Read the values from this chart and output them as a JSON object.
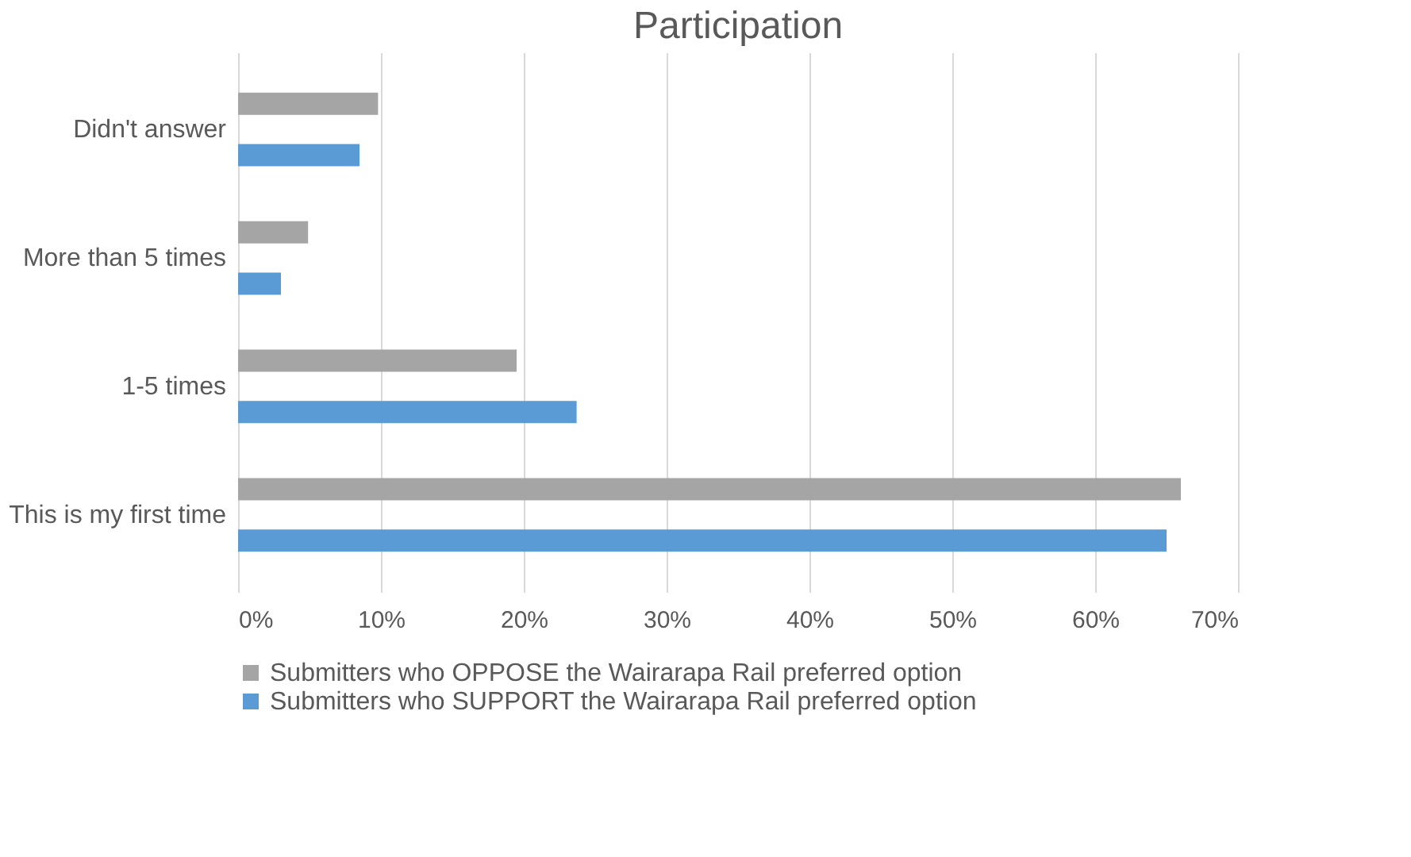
{
  "chart_data": {
    "type": "bar",
    "orientation": "horizontal",
    "title": "Participation",
    "categories": [
      "Didn't answer",
      "More than 5 times",
      "1-5 times",
      "This is my first time"
    ],
    "series": [
      {
        "name": "Submitters who OPPOSE the Wairarapa Rail preferred option",
        "color": "#a5a5a5",
        "values": [
          9.8,
          4.9,
          19.5,
          66
        ]
      },
      {
        "name": "Submitters who SUPPORT the Wairarapa Rail preferred option",
        "color": "#5b9bd5",
        "values": [
          8.5,
          3,
          23.7,
          65
        ]
      }
    ],
    "xlim": [
      0,
      70
    ],
    "xticks": [
      {
        "value": 0,
        "label": "0%"
      },
      {
        "value": 10,
        "label": "10%"
      },
      {
        "value": 20,
        "label": "20%"
      },
      {
        "value": 30,
        "label": "30%"
      },
      {
        "value": 40,
        "label": "40%"
      },
      {
        "value": 50,
        "label": "50%"
      },
      {
        "value": 60,
        "label": "60%"
      },
      {
        "value": 70,
        "label": "70%"
      }
    ],
    "grid": "x",
    "legend": "bottom"
  }
}
